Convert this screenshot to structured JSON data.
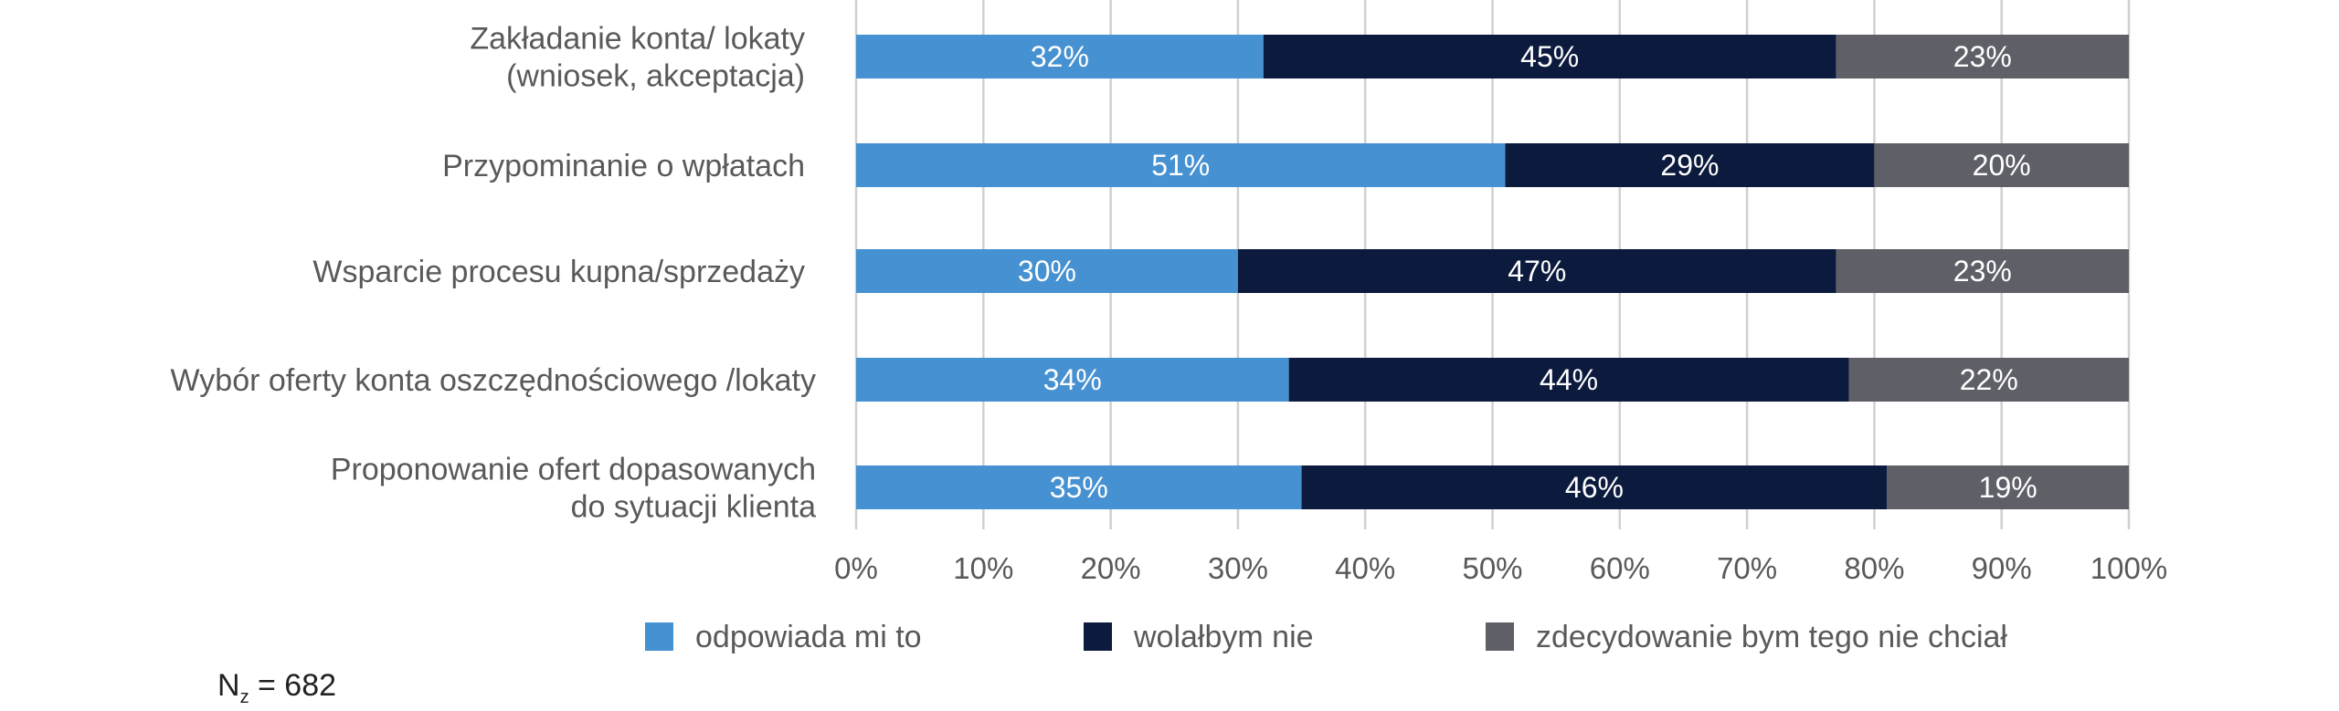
{
  "chart_data": {
    "type": "bar",
    "orientation": "horizontal",
    "stacked": true,
    "categories": [
      [
        "Zakładanie konta/ lokaty",
        "(wniosek, akceptacja)"
      ],
      [
        "Przypominanie o wpłatach"
      ],
      [
        "Wsparcie procesu kupna/sprzedaży"
      ],
      [
        "Wybór oferty konta oszczędnościowego /lokaty"
      ],
      [
        "Proponowanie ofert dopasowanych",
        "do sytuacji klienta"
      ]
    ],
    "series": [
      {
        "name": "odpowiada mi to",
        "color": "#4691d1",
        "values": [
          32,
          51,
          30,
          34,
          35
        ],
        "labels": [
          "32%",
          "51%",
          "30%",
          "34%",
          "35%"
        ]
      },
      {
        "name": "wolałbym nie",
        "color": "#0c1a3d",
        "values": [
          45,
          29,
          47,
          44,
          46
        ],
        "labels": [
          "45%",
          "29%",
          "47%",
          "44%",
          "46%"
        ]
      },
      {
        "name": "zdecydowanie bym tego nie chciał",
        "color": "#5f6067",
        "values": [
          23,
          20,
          23,
          22,
          19
        ],
        "labels": [
          "23%",
          "20%",
          "23%",
          "22%",
          "19%"
        ]
      }
    ],
    "xlim": [
      0,
      100
    ],
    "x_ticks": [
      "0%",
      "10%",
      "20%",
      "30%",
      "40%",
      "50%",
      "60%",
      "70%",
      "80%",
      "90%",
      "100%"
    ],
    "grid": "vertical",
    "legend_position": "bottom",
    "title": "",
    "xlabel": "",
    "ylabel": ""
  },
  "footnote": {
    "prefix": "N",
    "subscript": "z",
    "suffix": " = 682"
  }
}
